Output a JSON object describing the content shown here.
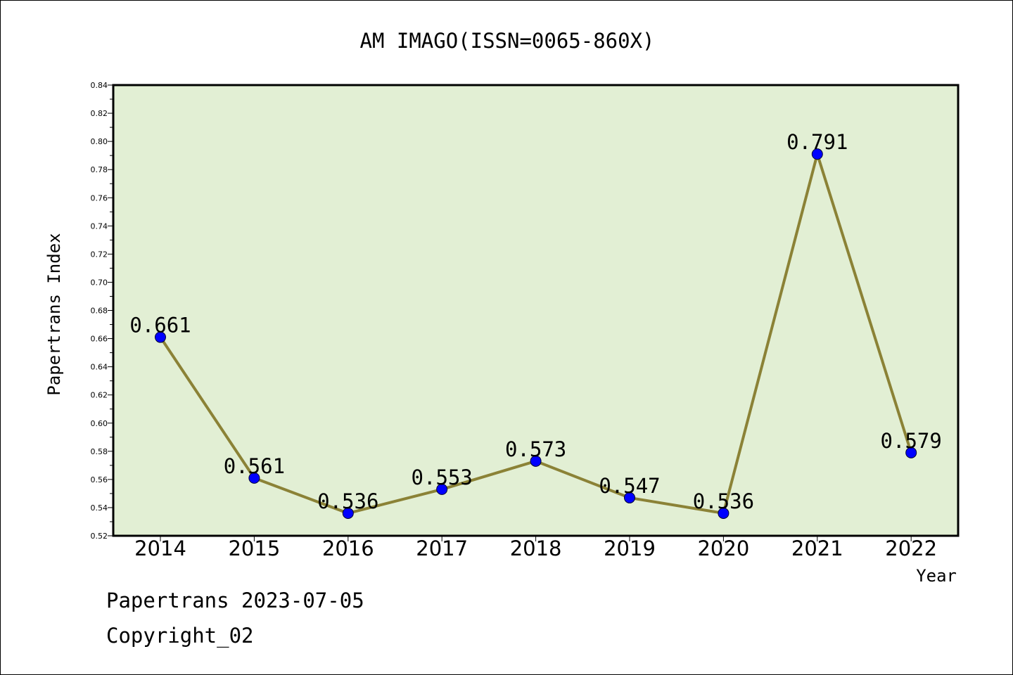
{
  "chart_data": {
    "type": "line",
    "title": "AM IMAGO(ISSN=0065-860X)",
    "xlabel": "Year",
    "ylabel": "Papertrans Index",
    "categories": [
      "2014",
      "2015",
      "2016",
      "2017",
      "2018",
      "2019",
      "2020",
      "2021",
      "2022"
    ],
    "values": [
      0.661,
      0.561,
      0.536,
      0.553,
      0.573,
      0.547,
      0.536,
      0.791,
      0.579
    ],
    "data_labels": [
      "0.661",
      "0.561",
      "0.536",
      "0.553",
      "0.573",
      "0.547",
      "0.536",
      "0.791",
      "0.579"
    ],
    "ylim": [
      0.52,
      0.84
    ],
    "yticks": [
      "0.52",
      "0.54",
      "0.56",
      "0.58",
      "0.60",
      "0.62",
      "0.64",
      "0.66",
      "0.68",
      "0.70",
      "0.72",
      "0.74",
      "0.76",
      "0.78",
      "0.80",
      "0.82",
      "0.84"
    ],
    "grid": false,
    "colors": {
      "plot_background": "#e2efd4",
      "line": "#8b8236",
      "marker": "#0000ff"
    }
  },
  "footer": {
    "date_line": "Papertrans 2023-07-05",
    "copyright": "Copyright_02"
  }
}
